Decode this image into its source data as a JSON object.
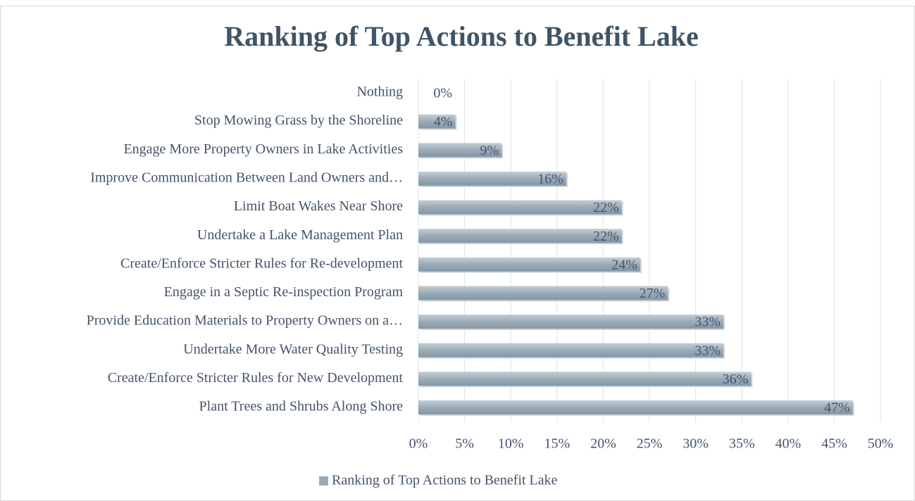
{
  "chart_data": {
    "type": "hbar",
    "title": "Ranking of Top Actions to Benefit Lake",
    "categories": [
      "Nothing",
      "Stop Mowing Grass by the Shoreline",
      "Engage More Property Owners in Lake Activities",
      "Improve Communication Between Land Owners and…",
      "Limit Boat Wakes Near Shore",
      "Undertake a Lake Management Plan",
      "Create/Enforce Stricter Rules for Re-development",
      "Engage in a Septic Re-inspection Program",
      "Provide Education Materials to Property Owners on a…",
      "Undertake More Water Quality Testing",
      "Create/Enforce Stricter Rules for New Development",
      "Plant Trees and Shrubs Along Shore"
    ],
    "series": [
      {
        "name": "Ranking of Top Actions to Benefit Lake",
        "color": "#9aabb8",
        "values": [
          0,
          4,
          9,
          16,
          22,
          22,
          24,
          27,
          33,
          33,
          36,
          47
        ],
        "value_labels": [
          "0%",
          "4%",
          "9%",
          "16%",
          "22%",
          "22%",
          "24%",
          "27%",
          "33%",
          "33%",
          "36%",
          "47%"
        ]
      }
    ],
    "xlim": [
      0,
      50
    ],
    "xticks": [
      {
        "value": 0,
        "label": "0%"
      },
      {
        "value": 5,
        "label": "5%"
      },
      {
        "value": 10,
        "label": "10%"
      },
      {
        "value": 15,
        "label": "15%"
      },
      {
        "value": 20,
        "label": "20%"
      },
      {
        "value": 25,
        "label": "25%"
      },
      {
        "value": 30,
        "label": "30%"
      },
      {
        "value": 35,
        "label": "35%"
      },
      {
        "value": 40,
        "label": "40%"
      },
      {
        "value": 45,
        "label": "45%"
      },
      {
        "value": 50,
        "label": "50%"
      }
    ],
    "grid": true,
    "legend": "bottom"
  }
}
